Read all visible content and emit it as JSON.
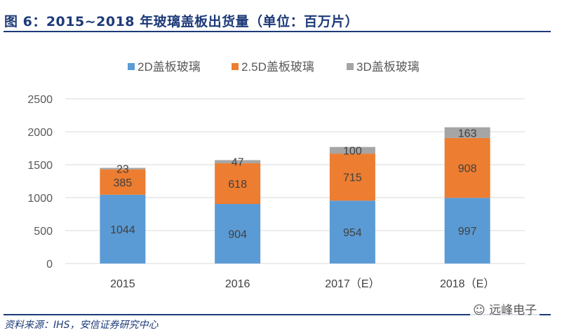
{
  "header": {
    "title": "图 6：2015~2018 年玻璃盖板出货量（单位：百万片）"
  },
  "footer": {
    "source": "资料来源：IHS，安信证券研究中心",
    "watermark": "远峰电子"
  },
  "chart_data": {
    "type": "bar",
    "stacked": true,
    "categories": [
      "2015",
      "2016",
      "2017（E）",
      "2018（E）"
    ],
    "series": [
      {
        "name": "2D盖板玻璃",
        "color": "#5b9bd5",
        "values": [
          1044,
          904,
          954,
          997
        ]
      },
      {
        "name": "2.5D盖板玻璃",
        "color": "#ed7d31",
        "values": [
          385,
          618,
          715,
          908
        ]
      },
      {
        "name": "3D盖板玻璃",
        "color": "#a5a5a5",
        "values": [
          23,
          47,
          100,
          163
        ]
      }
    ],
    "ylim": [
      0,
      2500
    ],
    "yticks": [
      0,
      500,
      1000,
      1500,
      2000,
      2500
    ],
    "grid": true,
    "legend": "top-center",
    "xlabel": "",
    "ylabel": ""
  }
}
